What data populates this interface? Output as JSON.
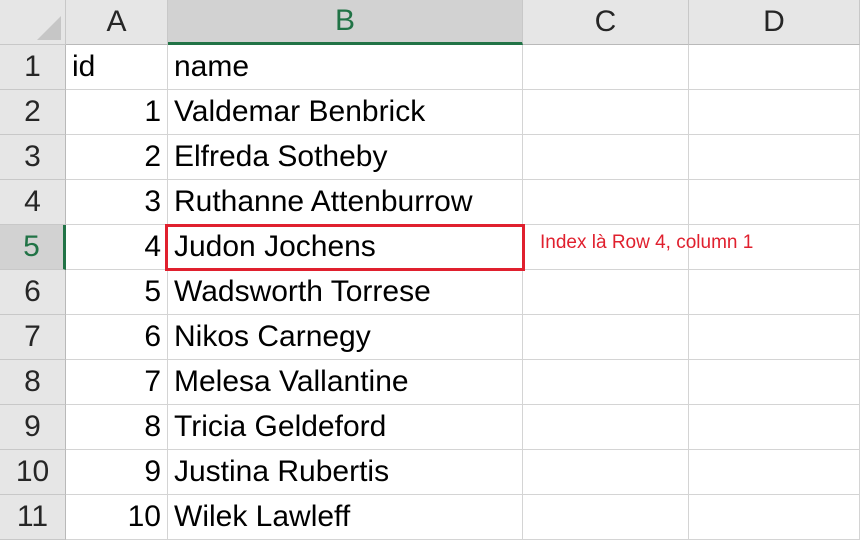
{
  "columns": [
    "A",
    "B",
    "C",
    "D"
  ],
  "selected_column": "B",
  "selected_row": "5",
  "rows": [
    {
      "num": "1",
      "a": "id",
      "b": "name"
    },
    {
      "num": "2",
      "a": "1",
      "b": "Valdemar Benbrick"
    },
    {
      "num": "3",
      "a": "2",
      "b": "Elfreda Sotheby"
    },
    {
      "num": "4",
      "a": "3",
      "b": "Ruthanne Attenburrow"
    },
    {
      "num": "5",
      "a": "4",
      "b": "Judon Jochens"
    },
    {
      "num": "6",
      "a": "5",
      "b": "Wadsworth Torrese"
    },
    {
      "num": "7",
      "a": "6",
      "b": "Nikos Carnegy"
    },
    {
      "num": "8",
      "a": "7",
      "b": "Melesa Vallantine"
    },
    {
      "num": "9",
      "a": "8",
      "b": "Tricia Geldeford"
    },
    {
      "num": "10",
      "a": "9",
      "b": "Justina Rubertis"
    },
    {
      "num": "11",
      "a": "10",
      "b": "Wilek Lawleff"
    }
  ],
  "annotation": {
    "text": "Index là Row 4, column 1",
    "color": "#e0202e"
  },
  "colors": {
    "header_bg": "#e6e6e6",
    "selected_header_bg": "#d2d2d2",
    "selected_accent": "#217346",
    "highlight": "#e0202e"
  }
}
